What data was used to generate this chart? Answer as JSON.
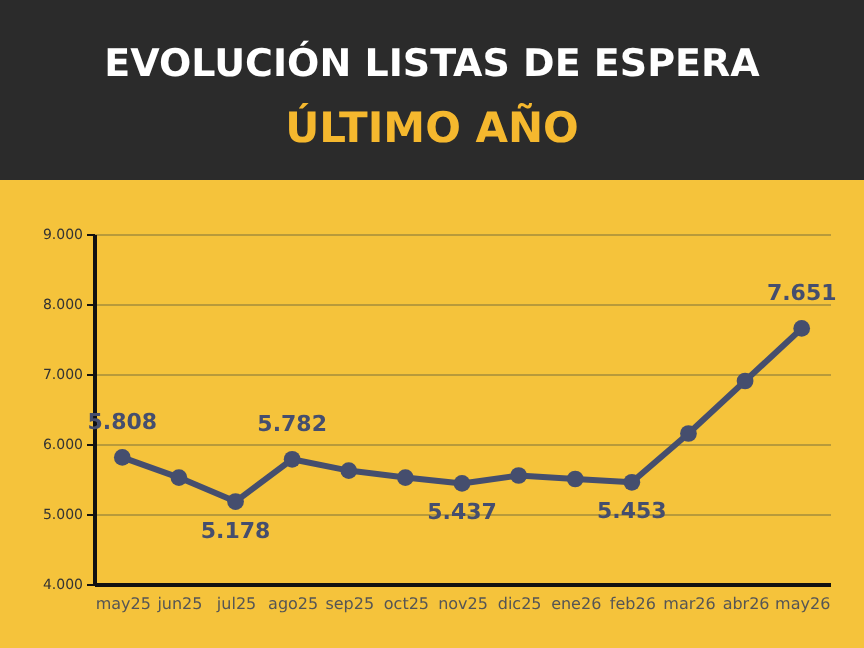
{
  "chart_data": {
    "type": "line",
    "title": "EVOLUCIÓN LISTAS DE ESPERA",
    "subtitle": "ÚLTIMO AÑO",
    "categories": [
      "may25",
      "jun25",
      "jul25",
      "ago25",
      "sep25",
      "oct25",
      "nov25",
      "dic25",
      "ene26",
      "feb26",
      "mar26",
      "abr26",
      "may26"
    ],
    "series": [
      {
        "color": "#454e6e",
        "values": [
          5808,
          5520,
          5178,
          5782,
          5620,
          5520,
          5437,
          5550,
          5500,
          5453,
          6150,
          6900,
          7651
        ],
        "value_labels": [
          "5.808",
          null,
          "5.178",
          "5.782",
          null,
          null,
          "5.437",
          null,
          null,
          "5.453",
          null,
          null,
          "7.651"
        ]
      }
    ],
    "ylim": [
      4000,
      9000
    ],
    "yticks": [
      {
        "value": 4000,
        "label": "4.000"
      },
      {
        "value": 5000,
        "label": "5.000"
      },
      {
        "value": 6000,
        "label": "6.000"
      },
      {
        "value": 7000,
        "label": "7.000"
      },
      {
        "value": 8000,
        "label": "8.000"
      },
      {
        "value": 9000,
        "label": "9.000"
      }
    ],
    "grid": "y",
    "marker": "circle",
    "line_style": "solid"
  }
}
